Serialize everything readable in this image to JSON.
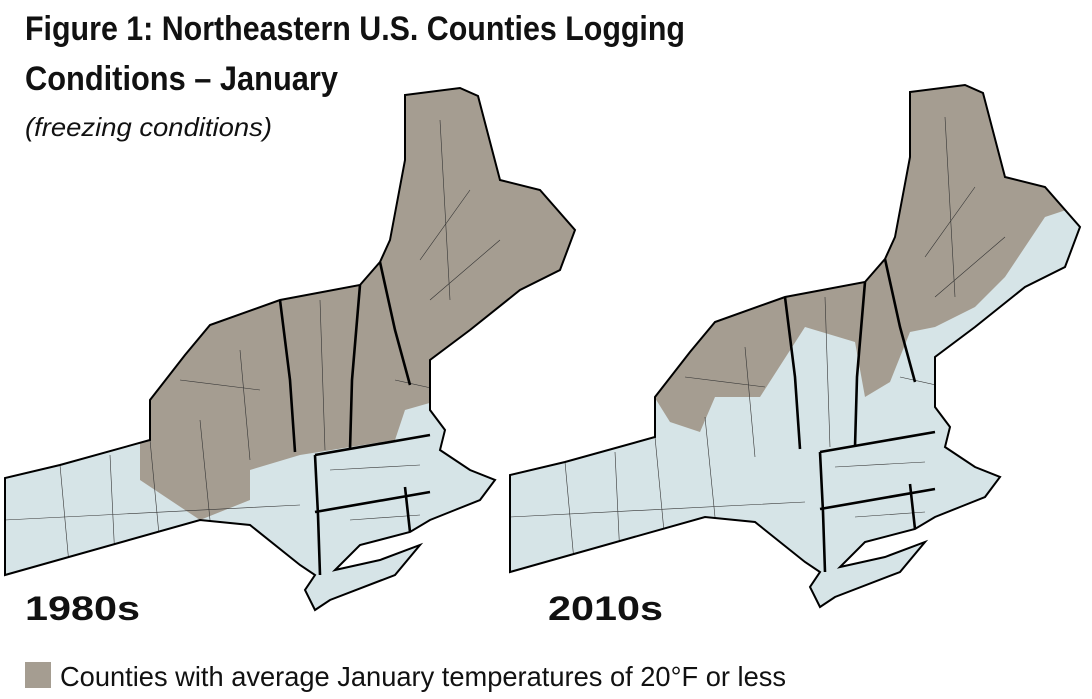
{
  "title_lines": [
    "Figure 1: Northeastern U.S. Counties Logging",
    "Conditions – January"
  ],
  "subtitle": "(freezing conditions)",
  "maps": [
    {
      "label": "1980s"
    },
    {
      "label": "2010s"
    }
  ],
  "colors": {
    "freezing": "#a59d91",
    "other": "#d6e4e7"
  },
  "legend": {
    "label": "Counties with average January temperatures of 20°F or less"
  }
}
